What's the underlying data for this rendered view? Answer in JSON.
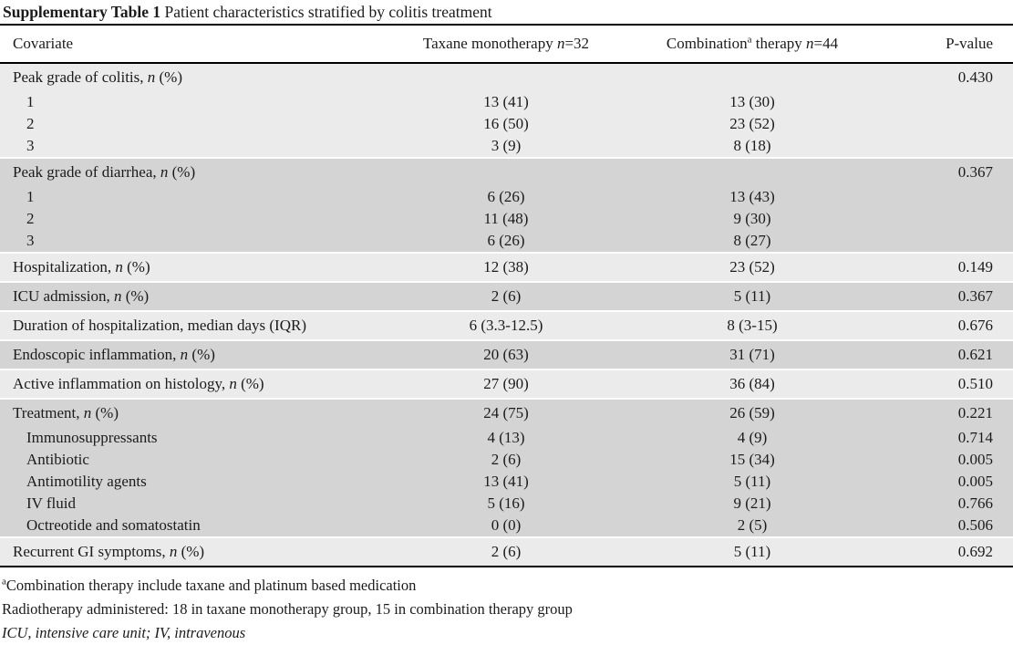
{
  "colors": {
    "light_row": "#ebebeb",
    "dark_row": "#d4d4d4",
    "rule": "#000000",
    "text": "#1b1b1b"
  },
  "title": {
    "bold": "Supplementary Table 1",
    "rest": " Patient characteristics stratified by colitis treatment"
  },
  "table": {
    "header": {
      "covariate": "Covariate",
      "taxane": {
        "pre": "Taxane monotherapy ",
        "n": "n",
        "post": "=32"
      },
      "combination": {
        "pre": "Combination",
        "sup": "a",
        "mid": " therapy ",
        "n": "n",
        "post": "=44"
      },
      "pvalue": "P-value"
    },
    "blocks": [
      {
        "shade": "light",
        "rows": [
          {
            "label_pre": "Peak grade of colitis, ",
            "label_it": "n",
            "label_post": " (%)",
            "taxane": "",
            "combination": "",
            "pvalue": "0.430"
          },
          {
            "label_pre": "1",
            "taxane": "13 (41)",
            "combination": "13 (30)",
            "pvalue": "",
            "indent": true
          },
          {
            "label_pre": "2",
            "taxane": "16 (50)",
            "combination": "23 (52)",
            "pvalue": "",
            "indent": true
          },
          {
            "label_pre": "3",
            "taxane": "3 (9)",
            "combination": "8 (18)",
            "pvalue": "",
            "indent": true
          }
        ]
      },
      {
        "shade": "dark",
        "rows": [
          {
            "label_pre": "Peak grade of diarrhea, ",
            "label_it": "n",
            "label_post": " (%)",
            "taxane": "",
            "combination": "",
            "pvalue": "0.367"
          },
          {
            "label_pre": "1",
            "taxane": "6 (26)",
            "combination": "13 (43)",
            "pvalue": "",
            "indent": true
          },
          {
            "label_pre": "2",
            "taxane": "11 (48)",
            "combination": "9 (30)",
            "pvalue": "",
            "indent": true
          },
          {
            "label_pre": "3",
            "taxane": "6 (26)",
            "combination": "8 (27)",
            "pvalue": "",
            "indent": true
          }
        ]
      },
      {
        "shade": "light",
        "rows": [
          {
            "label_pre": "Hospitalization, ",
            "label_it": "n",
            "label_post": " (%)",
            "taxane": "12 (38)",
            "combination": "23 (52)",
            "pvalue": "0.149"
          }
        ]
      },
      {
        "shade": "dark",
        "rows": [
          {
            "label_pre": "ICU admission, ",
            "label_it": "n",
            "label_post": " (%)",
            "taxane": "2 (6)",
            "combination": "5 (11)",
            "pvalue": "0.367"
          }
        ]
      },
      {
        "shade": "light",
        "rows": [
          {
            "label_pre": "Duration of hospitalization, median days (IQR)",
            "taxane": "6 (3.3-12.5)",
            "combination": "8 (3-15)",
            "pvalue": "0.676"
          }
        ]
      },
      {
        "shade": "dark",
        "rows": [
          {
            "label_pre": "Endoscopic inflammation, ",
            "label_it": "n",
            "label_post": " (%)",
            "taxane": "20 (63)",
            "combination": "31 (71)",
            "pvalue": "0.621"
          }
        ]
      },
      {
        "shade": "light",
        "rows": [
          {
            "label_pre": "Active inflammation on histology, ",
            "label_it": "n",
            "label_post": " (%)",
            "taxane": "27 (90)",
            "combination": "36 (84)",
            "pvalue": "0.510"
          }
        ]
      },
      {
        "shade": "dark",
        "rows": [
          {
            "label_pre": "Treatment, ",
            "label_it": "n",
            "label_post": " (%)",
            "taxane": "24 (75)",
            "combination": "26 (59)",
            "pvalue": "0.221"
          },
          {
            "label_pre": "Immunosuppressants",
            "taxane": "4 (13)",
            "combination": "4 (9)",
            "pvalue": "0.714",
            "indent": true
          },
          {
            "label_pre": "Antibiotic",
            "taxane": "2 (6)",
            "combination": "15 (34)",
            "pvalue": "0.005",
            "indent": true
          },
          {
            "label_pre": "Antimotility agents",
            "taxane": "13 (41)",
            "combination": "5 (11)",
            "pvalue": "0.005",
            "indent": true
          },
          {
            "label_pre": "IV fluid",
            "taxane": "5 (16)",
            "combination": "9 (21)",
            "pvalue": "0.766",
            "indent": true
          },
          {
            "label_pre": "Octreotide and somatostatin",
            "taxane": "0 (0)",
            "combination": "2 (5)",
            "pvalue": "0.506",
            "indent": true
          }
        ]
      },
      {
        "shade": "light",
        "rows": [
          {
            "label_pre": "Recurrent GI symptoms, ",
            "label_it": "n",
            "label_post": " (%)",
            "taxane": "2 (6)",
            "combination": "5 (11)",
            "pvalue": "0.692"
          }
        ]
      }
    ]
  },
  "footnotes": [
    {
      "sup": "a",
      "text": "Combination therapy include taxane and platinum based medication",
      "italic": false
    },
    {
      "sup": "",
      "text": "Radiotherapy administered: 18 in taxane monotherapy group, 15 in combination therapy group",
      "italic": false
    },
    {
      "sup": "",
      "text": "ICU, intensive care unit; IV, intravenous",
      "italic": true
    }
  ]
}
